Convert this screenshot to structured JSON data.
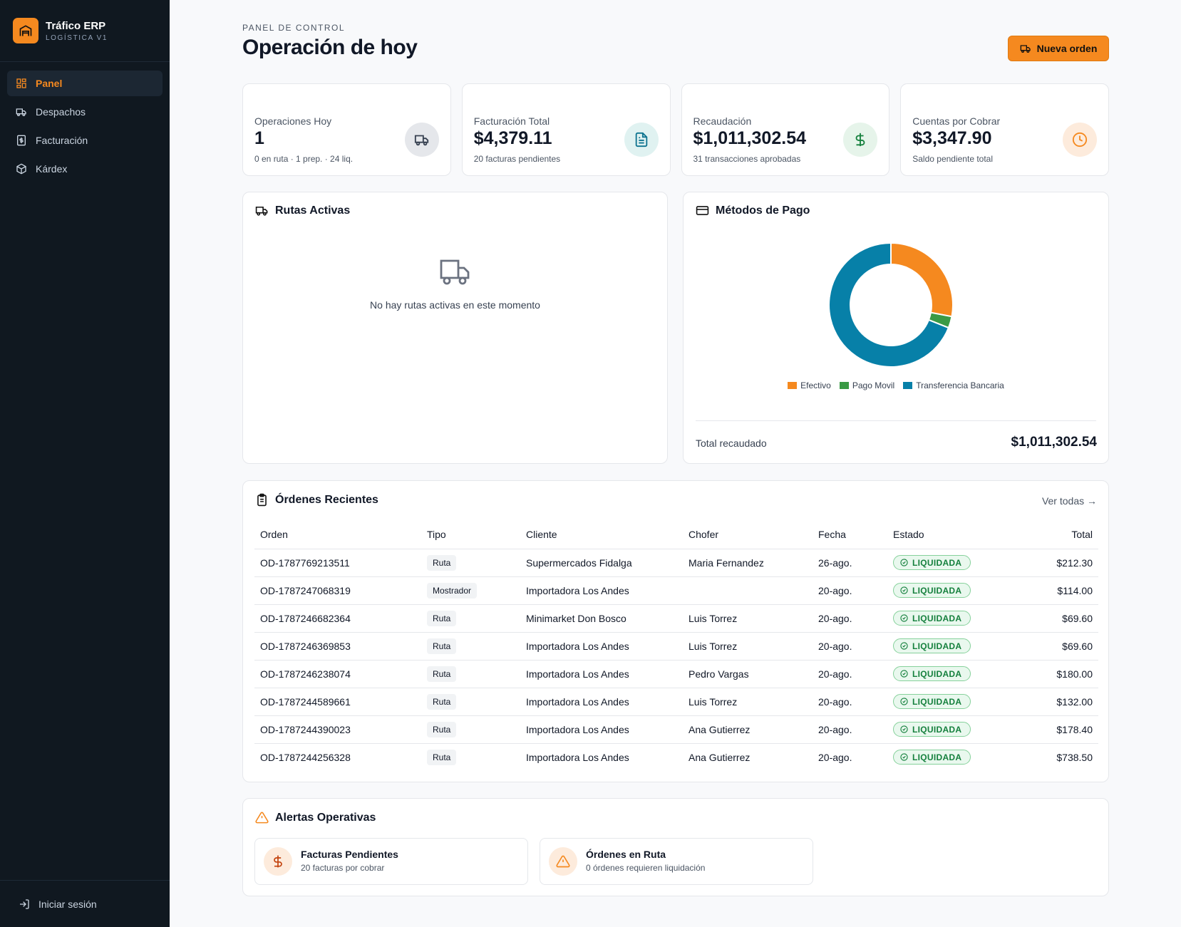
{
  "sidebar": {
    "brand_title": "Tráfico ERP",
    "brand_sub": "LOGÍSTICA V1",
    "items": [
      {
        "label": "Panel",
        "icon": "layout-grid-icon",
        "active": true
      },
      {
        "label": "Despachos",
        "icon": "truck-icon",
        "active": false
      },
      {
        "label": "Facturación",
        "icon": "receipt-icon",
        "active": false
      },
      {
        "label": "Kárdex",
        "icon": "box-icon",
        "active": false
      }
    ],
    "login_label": "Iniciar sesión"
  },
  "header": {
    "eyebrow": "PANEL DE CONTROL",
    "title": "Operación de hoy",
    "new_order_label": "Nueva orden"
  },
  "stats": [
    {
      "label": "Operaciones Hoy",
      "value": "1",
      "sub": "0 en ruta · 1 prep. · 24 liq.",
      "icon": "truck-icon",
      "icon_color": "#374151",
      "icon_bg": "#e5e7eb"
    },
    {
      "label": "Facturación Total",
      "value": "$4,379.11",
      "sub": "20 facturas pendientes",
      "icon": "document-icon",
      "icon_color": "#0e7490",
      "icon_bg": "#e0f2f1"
    },
    {
      "label": "Recaudación",
      "value": "$1,011,302.54",
      "sub": "31 transacciones aprobadas",
      "icon": "dollar-icon",
      "icon_color": "#15803d",
      "icon_bg": "#e6f4ea"
    },
    {
      "label": "Cuentas por Cobrar",
      "value": "$3,347.90",
      "sub": "Saldo pendiente total",
      "icon": "clock-icon",
      "icon_color": "#f5891f",
      "icon_bg": "#fdebdc"
    }
  ],
  "routes": {
    "title": "Rutas Activas",
    "empty_text": "No hay rutas activas en este momento"
  },
  "payments": {
    "title": "Métodos de Pago",
    "total_label": "Total recaudado",
    "total_value": "$1,011,302.54"
  },
  "chart_data": {
    "type": "pie",
    "donut": true,
    "categories": [
      "Efectivo",
      "Pago Movil",
      "Transferencia Bancaria"
    ],
    "values": [
      28,
      3,
      69
    ],
    "colors": [
      "#f5891f",
      "#3a9a45",
      "#0780a8"
    ],
    "legend": "bottom"
  },
  "orders": {
    "title": "Órdenes Recientes",
    "view_all": "Ver todas →",
    "columns": [
      "Orden",
      "Tipo",
      "Cliente",
      "Chofer",
      "Fecha",
      "Estado",
      "Total"
    ],
    "rows": [
      {
        "orden": "OD-1787769213511",
        "tipo": "Ruta",
        "cliente": "Supermercados Fidalga",
        "chofer": "Maria Fernandez",
        "fecha": "26-ago.",
        "estado": "LIQUIDADA",
        "total": "$212.30"
      },
      {
        "orden": "OD-1787247068319",
        "tipo": "Mostrador",
        "cliente": "Importadora Los Andes",
        "chofer": "",
        "fecha": "20-ago.",
        "estado": "LIQUIDADA",
        "total": "$114.00"
      },
      {
        "orden": "OD-1787246682364",
        "tipo": "Ruta",
        "cliente": "Minimarket Don Bosco",
        "chofer": "Luis Torrez",
        "fecha": "20-ago.",
        "estado": "LIQUIDADA",
        "total": "$69.60"
      },
      {
        "orden": "OD-1787246369853",
        "tipo": "Ruta",
        "cliente": "Importadora Los Andes",
        "chofer": "Luis Torrez",
        "fecha": "20-ago.",
        "estado": "LIQUIDADA",
        "total": "$69.60"
      },
      {
        "orden": "OD-1787246238074",
        "tipo": "Ruta",
        "cliente": "Importadora Los Andes",
        "chofer": "Pedro Vargas",
        "fecha": "20-ago.",
        "estado": "LIQUIDADA",
        "total": "$180.00"
      },
      {
        "orden": "OD-1787244589661",
        "tipo": "Ruta",
        "cliente": "Importadora Los Andes",
        "chofer": "Luis Torrez",
        "fecha": "20-ago.",
        "estado": "LIQUIDADA",
        "total": "$132.00"
      },
      {
        "orden": "OD-1787244390023",
        "tipo": "Ruta",
        "cliente": "Importadora Los Andes",
        "chofer": "Ana Gutierrez",
        "fecha": "20-ago.",
        "estado": "LIQUIDADA",
        "total": "$178.40"
      },
      {
        "orden": "OD-1787244256328",
        "tipo": "Ruta",
        "cliente": "Importadora Los Andes",
        "chofer": "Ana Gutierrez",
        "fecha": "20-ago.",
        "estado": "LIQUIDADA",
        "total": "$738.50"
      }
    ]
  },
  "alerts": {
    "title": "Alertas Operativas",
    "items": [
      {
        "title": "Facturas Pendientes",
        "sub": "20 facturas por cobrar",
        "icon": "dollar-icon"
      },
      {
        "title": "Órdenes en Ruta",
        "sub": "0 órdenes requieren liquidación",
        "icon": "warning-icon"
      }
    ]
  },
  "colors": {
    "accent": "#f5891f",
    "sidebar_bg": "#101820",
    "success": "#15803d"
  }
}
